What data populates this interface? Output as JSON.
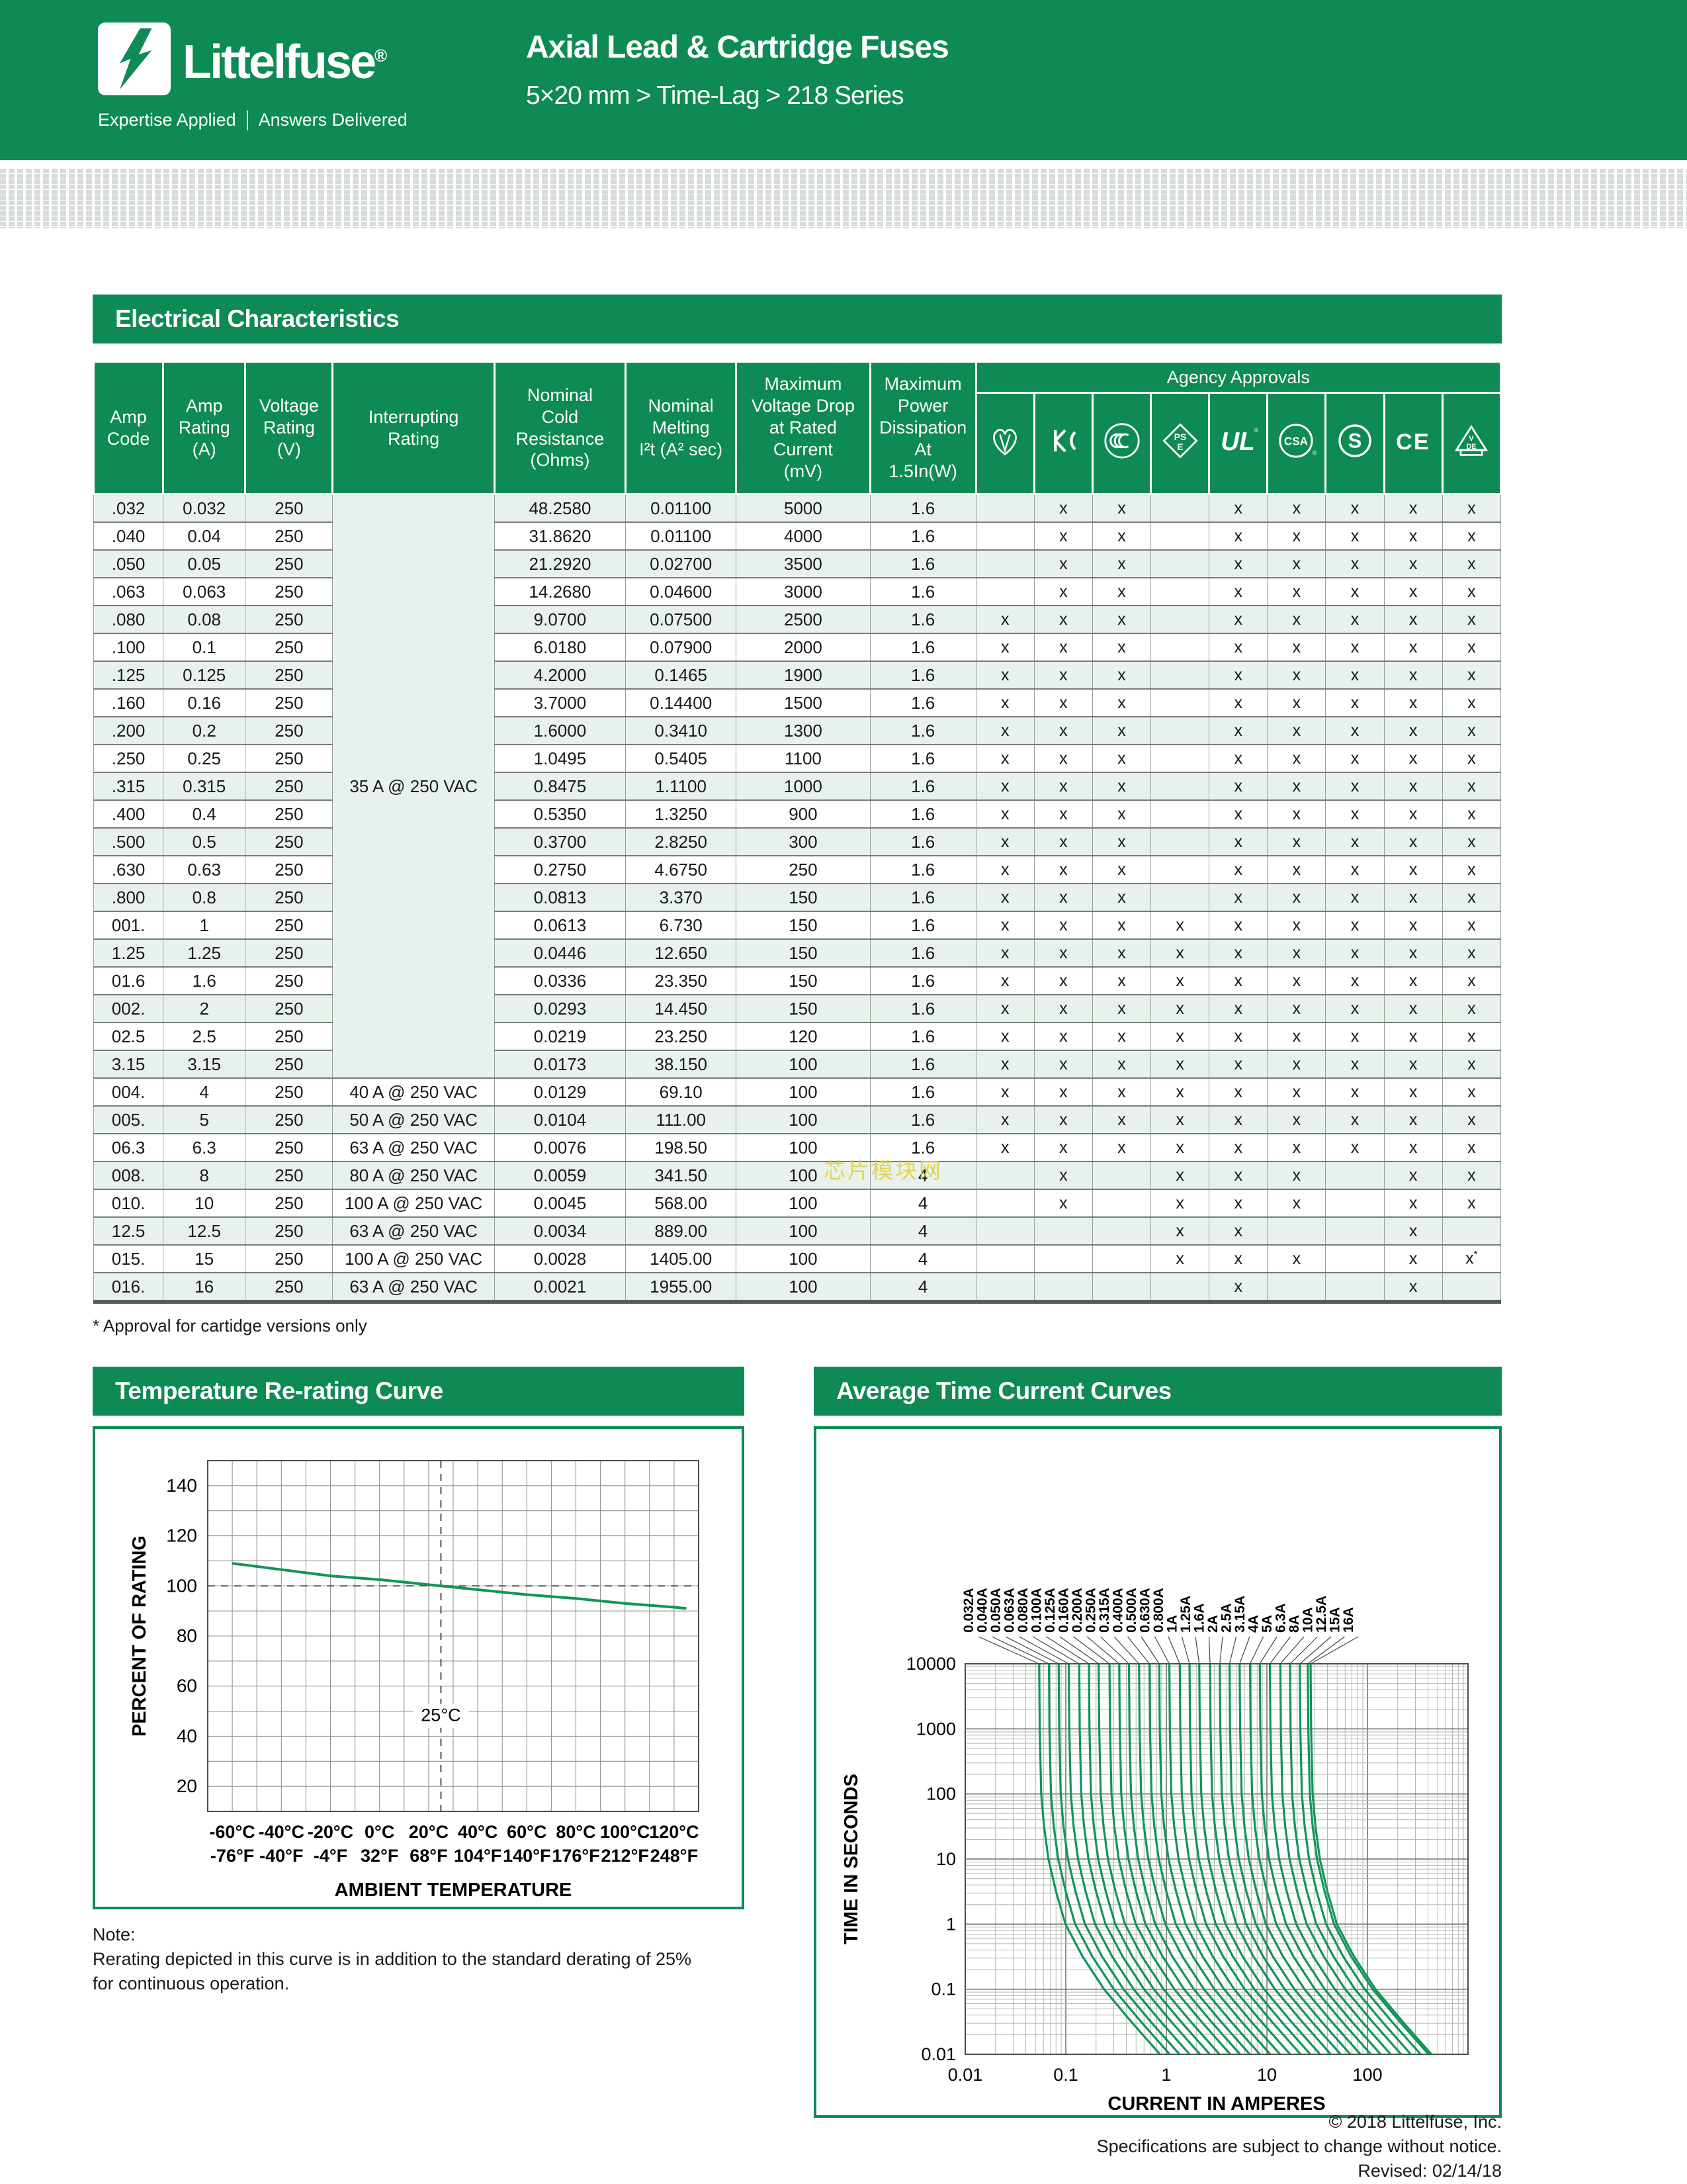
{
  "page": {
    "colors": {
      "brand_green": "#0E8A54",
      "row_tint_green": "#e8f1eb",
      "curve_green": "#129457",
      "halftone_gray": "#d8dcd9",
      "watermark_yellow": "#e3cf3f"
    },
    "header": {
      "logo_text": "Littelfuse",
      "logo_reg": "®",
      "tagline_left": "Expertise Applied",
      "tagline_right": "Answers Delivered",
      "title": "Axial Lead & Cartridge Fuses",
      "subtitle": "5×20 mm > Time-Lag > 218 Series"
    },
    "watermark": "芯片模块网",
    "electrical": {
      "section_title": "Electrical Characteristics",
      "columns": [
        "Amp\nCode",
        "Amp\nRating\n(A)",
        "Voltage\nRating\n(V)",
        "Interrupting\nRating",
        "Nominal\nCold\nResistance\n(Ohms)",
        "Nominal\nMelting\nI²t (A² sec)",
        "Maximum\nVoltage Drop\nat Rated\nCurrent\n(mV)",
        "Maximum\nPower\nDissipation\nAt\n1.5In(W)"
      ],
      "agency_header": "Agency Approvals",
      "agency_icons": [
        "demko-icon",
        "kc-icon",
        "ccc-icon",
        "pse-icon",
        "ul-icon",
        "csa-icon",
        "semko-icon",
        "ce-icon",
        "vde-icon"
      ],
      "interrupting_merged_label": "35 A @ 250 VAC",
      "interrupting_merged_span": 21,
      "rows": [
        {
          "code": ".032",
          "amp": "0.032",
          "volt": "250",
          "int": "35 A @ 250 VAC",
          "res": "48.2580",
          "i2t": "0.01100",
          "vdrop": "5000",
          "pwr": "1.6",
          "app": [
            "",
            "x",
            "x",
            "",
            "x",
            "x",
            "x",
            "x",
            "x"
          ]
        },
        {
          "code": ".040",
          "amp": "0.04",
          "volt": "250",
          "int": null,
          "res": "31.8620",
          "i2t": "0.01100",
          "vdrop": "4000",
          "pwr": "1.6",
          "app": [
            "",
            "x",
            "x",
            "",
            "x",
            "x",
            "x",
            "x",
            "x"
          ]
        },
        {
          "code": ".050",
          "amp": "0.05",
          "volt": "250",
          "int": null,
          "res": "21.2920",
          "i2t": "0.02700",
          "vdrop": "3500",
          "pwr": "1.6",
          "app": [
            "",
            "x",
            "x",
            "",
            "x",
            "x",
            "x",
            "x",
            "x"
          ]
        },
        {
          "code": ".063",
          "amp": "0.063",
          "volt": "250",
          "int": null,
          "res": "14.2680",
          "i2t": "0.04600",
          "vdrop": "3000",
          "pwr": "1.6",
          "app": [
            "",
            "x",
            "x",
            "",
            "x",
            "x",
            "x",
            "x",
            "x"
          ]
        },
        {
          "code": ".080",
          "amp": "0.08",
          "volt": "250",
          "int": null,
          "res": "9.0700",
          "i2t": "0.07500",
          "vdrop": "2500",
          "pwr": "1.6",
          "app": [
            "x",
            "x",
            "x",
            "",
            "x",
            "x",
            "x",
            "x",
            "x"
          ]
        },
        {
          "code": ".100",
          "amp": "0.1",
          "volt": "250",
          "int": null,
          "res": "6.0180",
          "i2t": "0.07900",
          "vdrop": "2000",
          "pwr": "1.6",
          "app": [
            "x",
            "x",
            "x",
            "",
            "x",
            "x",
            "x",
            "x",
            "x"
          ]
        },
        {
          "code": ".125",
          "amp": "0.125",
          "volt": "250",
          "int": null,
          "res": "4.2000",
          "i2t": "0.1465",
          "vdrop": "1900",
          "pwr": "1.6",
          "app": [
            "x",
            "x",
            "x",
            "",
            "x",
            "x",
            "x",
            "x",
            "x"
          ]
        },
        {
          "code": ".160",
          "amp": "0.16",
          "volt": "250",
          "int": null,
          "res": "3.7000",
          "i2t": "0.14400",
          "vdrop": "1500",
          "pwr": "1.6",
          "app": [
            "x",
            "x",
            "x",
            "",
            "x",
            "x",
            "x",
            "x",
            "x"
          ]
        },
        {
          "code": ".200",
          "amp": "0.2",
          "volt": "250",
          "int": null,
          "res": "1.6000",
          "i2t": "0.3410",
          "vdrop": "1300",
          "pwr": "1.6",
          "app": [
            "x",
            "x",
            "x",
            "",
            "x",
            "x",
            "x",
            "x",
            "x"
          ]
        },
        {
          "code": ".250",
          "amp": "0.25",
          "volt": "250",
          "int": null,
          "res": "1.0495",
          "i2t": "0.5405",
          "vdrop": "1100",
          "pwr": "1.6",
          "app": [
            "x",
            "x",
            "x",
            "",
            "x",
            "x",
            "x",
            "x",
            "x"
          ]
        },
        {
          "code": ".315",
          "amp": "0.315",
          "volt": "250",
          "int": null,
          "res": "0.8475",
          "i2t": "1.1100",
          "vdrop": "1000",
          "pwr": "1.6",
          "app": [
            "x",
            "x",
            "x",
            "",
            "x",
            "x",
            "x",
            "x",
            "x"
          ]
        },
        {
          "code": ".400",
          "amp": "0.4",
          "volt": "250",
          "int": null,
          "res": "0.5350",
          "i2t": "1.3250",
          "vdrop": "900",
          "pwr": "1.6",
          "app": [
            "x",
            "x",
            "x",
            "",
            "x",
            "x",
            "x",
            "x",
            "x"
          ]
        },
        {
          "code": ".500",
          "amp": "0.5",
          "volt": "250",
          "int": null,
          "res": "0.3700",
          "i2t": "2.8250",
          "vdrop": "300",
          "pwr": "1.6",
          "app": [
            "x",
            "x",
            "x",
            "",
            "x",
            "x",
            "x",
            "x",
            "x"
          ]
        },
        {
          "code": ".630",
          "amp": "0.63",
          "volt": "250",
          "int": null,
          "res": "0.2750",
          "i2t": "4.6750",
          "vdrop": "250",
          "pwr": "1.6",
          "app": [
            "x",
            "x",
            "x",
            "",
            "x",
            "x",
            "x",
            "x",
            "x"
          ]
        },
        {
          "code": ".800",
          "amp": "0.8",
          "volt": "250",
          "int": null,
          "res": "0.0813",
          "i2t": "3.370",
          "vdrop": "150",
          "pwr": "1.6",
          "app": [
            "x",
            "x",
            "x",
            "",
            "x",
            "x",
            "x",
            "x",
            "x"
          ]
        },
        {
          "code": "001.",
          "amp": "1",
          "volt": "250",
          "int": null,
          "res": "0.0613",
          "i2t": "6.730",
          "vdrop": "150",
          "pwr": "1.6",
          "app": [
            "x",
            "x",
            "x",
            "x",
            "x",
            "x",
            "x",
            "x",
            "x"
          ]
        },
        {
          "code": "1.25",
          "amp": "1.25",
          "volt": "250",
          "int": null,
          "res": "0.0446",
          "i2t": "12.650",
          "vdrop": "150",
          "pwr": "1.6",
          "app": [
            "x",
            "x",
            "x",
            "x",
            "x",
            "x",
            "x",
            "x",
            "x"
          ]
        },
        {
          "code": "01.6",
          "amp": "1.6",
          "volt": "250",
          "int": null,
          "res": "0.0336",
          "i2t": "23.350",
          "vdrop": "150",
          "pwr": "1.6",
          "app": [
            "x",
            "x",
            "x",
            "x",
            "x",
            "x",
            "x",
            "x",
            "x"
          ]
        },
        {
          "code": "002.",
          "amp": "2",
          "volt": "250",
          "int": null,
          "res": "0.0293",
          "i2t": "14.450",
          "vdrop": "150",
          "pwr": "1.6",
          "app": [
            "x",
            "x",
            "x",
            "x",
            "x",
            "x",
            "x",
            "x",
            "x"
          ]
        },
        {
          "code": "02.5",
          "amp": "2.5",
          "volt": "250",
          "int": null,
          "res": "0.0219",
          "i2t": "23.250",
          "vdrop": "120",
          "pwr": "1.6",
          "app": [
            "x",
            "x",
            "x",
            "x",
            "x",
            "x",
            "x",
            "x",
            "x"
          ]
        },
        {
          "code": "3.15",
          "amp": "3.15",
          "volt": "250",
          "int": null,
          "res": "0.0173",
          "i2t": "38.150",
          "vdrop": "100",
          "pwr": "1.6",
          "app": [
            "x",
            "x",
            "x",
            "x",
            "x",
            "x",
            "x",
            "x",
            "x"
          ]
        },
        {
          "code": "004.",
          "amp": "4",
          "volt": "250",
          "int": "40 A @ 250 VAC",
          "res": "0.0129",
          "i2t": "69.10",
          "vdrop": "100",
          "pwr": "1.6",
          "app": [
            "x",
            "x",
            "x",
            "x",
            "x",
            "x",
            "x",
            "x",
            "x"
          ]
        },
        {
          "code": "005.",
          "amp": "5",
          "volt": "250",
          "int": "50 A @ 250 VAC",
          "res": "0.0104",
          "i2t": "111.00",
          "vdrop": "100",
          "pwr": "1.6",
          "app": [
            "x",
            "x",
            "x",
            "x",
            "x",
            "x",
            "x",
            "x",
            "x"
          ]
        },
        {
          "code": "06.3",
          "amp": "6.3",
          "volt": "250",
          "int": "63 A @ 250 VAC",
          "res": "0.0076",
          "i2t": "198.50",
          "vdrop": "100",
          "pwr": "1.6",
          "app": [
            "x",
            "x",
            "x",
            "x",
            "x",
            "x",
            "x",
            "x",
            "x"
          ]
        },
        {
          "code": "008.",
          "amp": "8",
          "volt": "250",
          "int": "80 A @ 250 VAC",
          "res": "0.0059",
          "i2t": "341.50",
          "vdrop": "100",
          "pwr": "4",
          "app": [
            "",
            "x",
            "",
            "x",
            "x",
            "x",
            "",
            "x",
            "x"
          ]
        },
        {
          "code": "010.",
          "amp": "10",
          "volt": "250",
          "int": "100 A @ 250 VAC",
          "res": "0.0045",
          "i2t": "568.00",
          "vdrop": "100",
          "pwr": "4",
          "app": [
            "",
            "x",
            "",
            "x",
            "x",
            "x",
            "",
            "x",
            "x"
          ]
        },
        {
          "code": "12.5",
          "amp": "12.5",
          "volt": "250",
          "int": "63 A @ 250 VAC",
          "res": "0.0034",
          "i2t": "889.00",
          "vdrop": "100",
          "pwr": "4",
          "app": [
            "",
            "",
            "",
            "x",
            "x",
            "",
            "",
            "x",
            ""
          ]
        },
        {
          "code": "015.",
          "amp": "15",
          "volt": "250",
          "int": "100 A @ 250 VAC",
          "res": "0.0028",
          "i2t": "1405.00",
          "vdrop": "100",
          "pwr": "4",
          "app": [
            "",
            "",
            "",
            "x",
            "x",
            "x",
            "",
            "x",
            "x*"
          ]
        },
        {
          "code": "016.",
          "amp": "16",
          "volt": "250",
          "int": "63 A @ 250 VAC",
          "res": "0.0021",
          "i2t": "1955.00",
          "vdrop": "100",
          "pwr": "4",
          "app": [
            "",
            "",
            "",
            "",
            "x",
            "",
            "",
            "x",
            ""
          ]
        }
      ],
      "footnote": "* Approval for cartidge versions only"
    },
    "temp_section_title": "Temperature Re-rating Curve",
    "tcc_section_title": "Average Time Current Curves",
    "note": [
      "Note:",
      "Rerating depicted in this curve is in addition to the standard derating of 25%",
      "for continuous operation."
    ],
    "footer": [
      "© 2018 Littelfuse, Inc.",
      "Specifications are subject to change without notice.",
      "Revised: 02/14/18"
    ]
  },
  "chart_data": [
    {
      "type": "line",
      "title": "Temperature Re-rating Curve",
      "xlabel": "AMBIENT TEMPERATURE",
      "ylabel": "PERCENT OF RATING",
      "xlim": [
        -70,
        130
      ],
      "ylim": [
        10,
        150
      ],
      "grid": "on, minor every 10 units both axes",
      "x_tick_values": [
        -60,
        -40,
        -20,
        0,
        20,
        40,
        60,
        80,
        100,
        120
      ],
      "x_tick_labels_c": [
        "-60°C",
        "-40°C",
        "-20°C",
        "0°C",
        "20°C",
        "40°C",
        "60°C",
        "80°C",
        "100°C",
        "120°C"
      ],
      "x_tick_labels_f": [
        "-76°F",
        "-40°F",
        "-4°F",
        "32°F",
        "68°F",
        "104°F",
        "140°F",
        "176°F",
        "212°F",
        "248°F"
      ],
      "y_tick_values": [
        20,
        40,
        60,
        80,
        100,
        120,
        140
      ],
      "reference_lines": {
        "horizontal_at": 100,
        "vertical_at": 25,
        "vertical_label": "25°C"
      },
      "series": [
        {
          "name": "rerating-curve",
          "x": [
            -60,
            -40,
            -20,
            0,
            25,
            40,
            60,
            80,
            100,
            120,
            125
          ],
          "y": [
            109,
            106.5,
            104,
            102.5,
            100,
            98.5,
            96.5,
            95,
            93,
            91.5,
            91
          ]
        }
      ]
    },
    {
      "type": "line",
      "title": "Average Time Current Curves",
      "xlabel": "CURRENT IN AMPERES",
      "ylabel": "TIME IN SECONDS",
      "x_scale": "log",
      "y_scale": "log",
      "xlim": [
        0.01,
        1000
      ],
      "ylim": [
        0.01,
        10000
      ],
      "x_tick_labels": [
        "0.01",
        "0.1",
        "1",
        "10",
        "100"
      ],
      "y_tick_labels": [
        "10000",
        "1000",
        "100",
        "10",
        "1",
        "0.1",
        "0.01"
      ],
      "curve_labels": [
        "0.032A",
        "0.040A",
        "0.050A",
        "0.063A",
        "0.080A",
        "0.100A",
        "0.125A",
        "0.160A",
        "0.200A",
        "0.250A",
        "0.315A",
        "0.400A",
        "0.500A",
        "0.630A",
        "0.800A",
        "1A",
        "1.25A",
        "1.6A",
        "2A",
        "2.5A",
        "3.15A",
        "4A",
        "5A",
        "6.3A",
        "8A",
        "10A",
        "12.5A",
        "15A",
        "16A"
      ],
      "ratings_amps": [
        0.032,
        0.04,
        0.05,
        0.063,
        0.08,
        0.1,
        0.125,
        0.16,
        0.2,
        0.25,
        0.315,
        0.4,
        0.5,
        0.63,
        0.8,
        1,
        1.25,
        1.6,
        2,
        2.5,
        3.15,
        4,
        5,
        6.3,
        8,
        10,
        12.5,
        15,
        16
      ],
      "current_multiplier_profile": {
        "log10_time": [
          4,
          3,
          2,
          1.5,
          1,
          0.5,
          0,
          -0.5,
          -1,
          -1.5,
          -2
        ],
        "multiplier_of_rating": [
          1.7,
          1.72,
          1.78,
          1.9,
          2.1,
          2.5,
          3.1,
          4.6,
          7.5,
          14,
          27
        ]
      }
    }
  ]
}
